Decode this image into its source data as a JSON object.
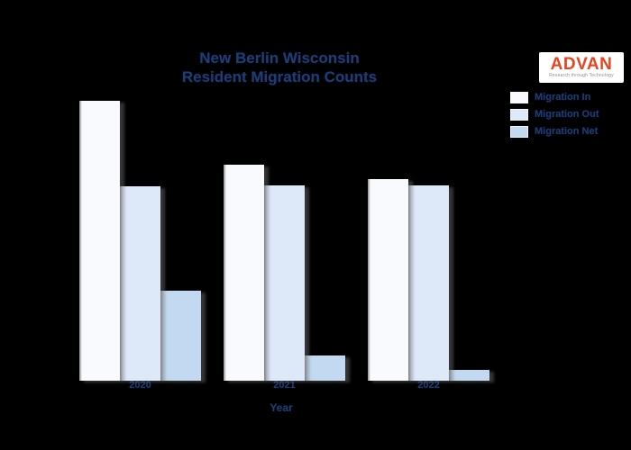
{
  "background": "#000000",
  "title": {
    "line1": "New Berlin Wisconsin",
    "line2": "Resident Migration Counts"
  },
  "logo": {
    "name": "ADVAN",
    "tagline": "Research through Technology",
    "text_color": "#e8421e",
    "bg_color": "#ffffff"
  },
  "colors": {
    "text": "#1e3d77",
    "background": "#000000"
  },
  "xaxis": {
    "title": "Year"
  },
  "chart_data": {
    "type": "bar",
    "title": "New Berlin Wisconsin Resident Migration Counts",
    "categories": [
      "2020",
      "2021",
      "2022"
    ],
    "series": [
      {
        "name": "Migration In",
        "color": "#f8fafe",
        "values": [
          3100,
          2390,
          2230
        ]
      },
      {
        "name": "Migration Out",
        "color": "#dde8f8",
        "values": [
          2150,
          2160,
          2160
        ]
      },
      {
        "name": "Migration Net",
        "color": "#c3d9f1",
        "values": [
          1000,
          280,
          120
        ]
      }
    ],
    "xlabel": "Year",
    "ylabel": "",
    "ylim": [
      0,
      3300
    ],
    "grid": false,
    "yaxis_labels_visible": false,
    "legend_position": "upper right"
  }
}
